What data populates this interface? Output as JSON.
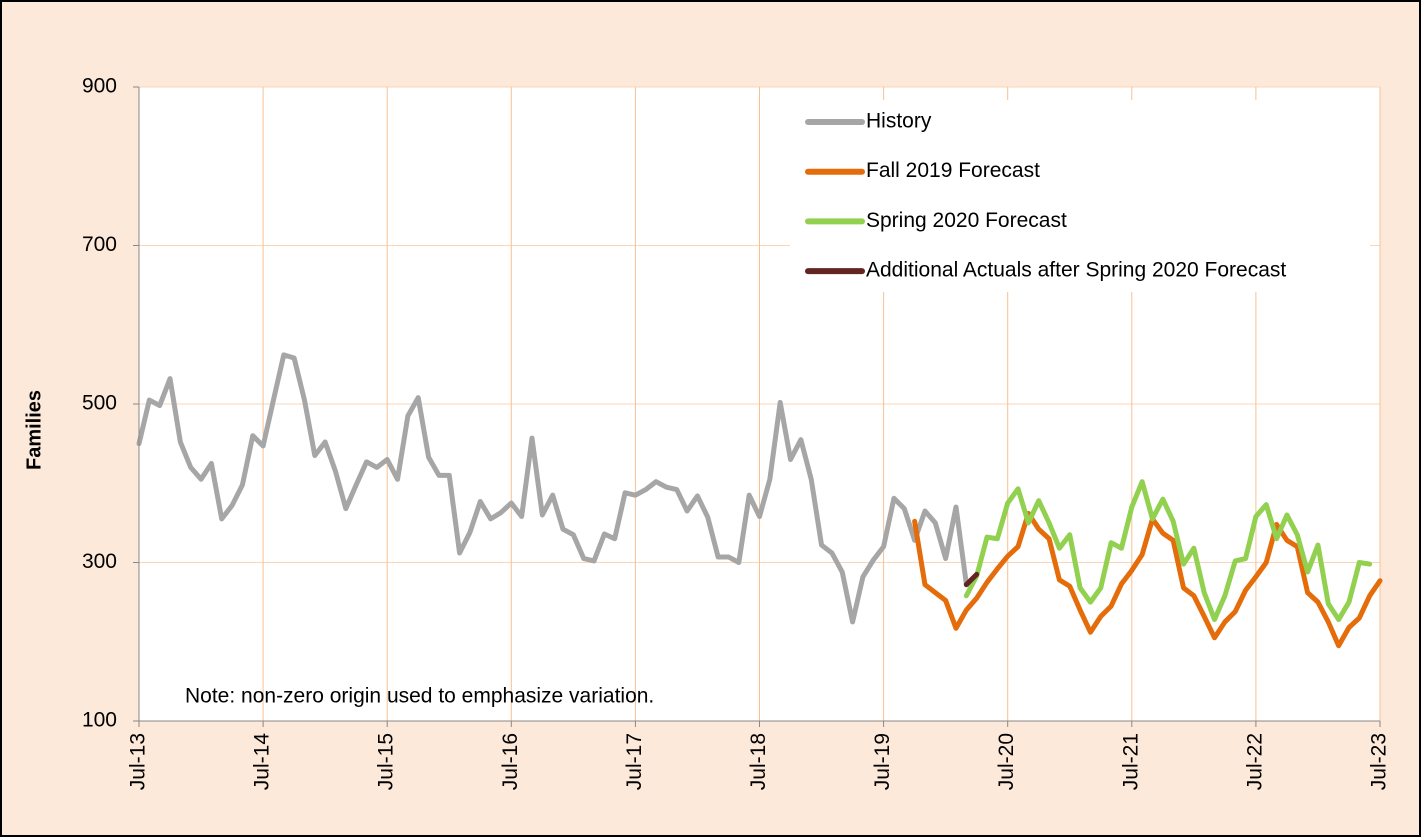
{
  "chart_data": {
    "type": "line",
    "y_label": "Families",
    "annotation": "Note: non-zero origin used to emphasize variation.",
    "categories": [
      "Jul-13",
      null,
      null,
      null,
      null,
      null,
      null,
      null,
      null,
      null,
      null,
      null,
      "Jul-14",
      null,
      null,
      null,
      null,
      null,
      null,
      null,
      null,
      null,
      null,
      null,
      "Jul-15",
      null,
      null,
      null,
      null,
      null,
      null,
      null,
      null,
      null,
      null,
      null,
      "Jul-16",
      null,
      null,
      null,
      null,
      null,
      null,
      null,
      null,
      null,
      null,
      null,
      "Jul-17",
      null,
      null,
      null,
      null,
      null,
      null,
      null,
      null,
      null,
      null,
      null,
      "Jul-18",
      null,
      null,
      null,
      null,
      null,
      null,
      null,
      null,
      null,
      null,
      null,
      "Jul-19",
      null,
      null,
      null,
      null,
      null,
      null,
      null,
      null,
      null,
      null,
      null,
      "Jul-20",
      null,
      null,
      null,
      null,
      null,
      null,
      null,
      null,
      null,
      null,
      null,
      "Jul-21",
      null,
      null,
      null,
      null,
      null,
      null,
      null,
      null,
      null,
      null,
      null,
      "Jul-22",
      null,
      null,
      null,
      null,
      null,
      null,
      null,
      null,
      null,
      null,
      null,
      "Jul-23"
    ],
    "series": [
      {
        "name": "History",
        "color": "#a6a6a6",
        "values": [
          450,
          505,
          498,
          532,
          452,
          420,
          405,
          425,
          355,
          372,
          398,
          460,
          447,
          505,
          562,
          558,
          505,
          435,
          452,
          415,
          368,
          398,
          427,
          420,
          430,
          405,
          485,
          508,
          433,
          410,
          410,
          312,
          338,
          377,
          355,
          363,
          375,
          358,
          457,
          360,
          385,
          342,
          335,
          305,
          302,
          336,
          330,
          388,
          385,
          392,
          402,
          395,
          392,
          365,
          384,
          357,
          307,
          307,
          300,
          385,
          358,
          405,
          502,
          430,
          455,
          405,
          322,
          312,
          288,
          225,
          282,
          303,
          320,
          381,
          368,
          328,
          365,
          350,
          305,
          370,
          273,
          null,
          null,
          null,
          null,
          null,
          null,
          null,
          null,
          null,
          null,
          null,
          null,
          null,
          null,
          null,
          null,
          null,
          null,
          null,
          null,
          null,
          null,
          null,
          null,
          null,
          null,
          null,
          null,
          null,
          null,
          null,
          null,
          null,
          null,
          null,
          null,
          null,
          null,
          null,
          null
        ]
      },
      {
        "name": "Fall 2019 Forecast",
        "color": "#e46c0a",
        "values": [
          null,
          null,
          null,
          null,
          null,
          null,
          null,
          null,
          null,
          null,
          null,
          null,
          null,
          null,
          null,
          null,
          null,
          null,
          null,
          null,
          null,
          null,
          null,
          null,
          null,
          null,
          null,
          null,
          null,
          null,
          null,
          null,
          null,
          null,
          null,
          null,
          null,
          null,
          null,
          null,
          null,
          null,
          null,
          null,
          null,
          null,
          null,
          null,
          null,
          null,
          null,
          null,
          null,
          null,
          null,
          null,
          null,
          null,
          null,
          null,
          null,
          null,
          null,
          null,
          null,
          null,
          null,
          null,
          null,
          null,
          null,
          null,
          null,
          null,
          null,
          352,
          272,
          262,
          252,
          217,
          240,
          255,
          275,
          292,
          308,
          320,
          362,
          342,
          330,
          278,
          270,
          240,
          212,
          232,
          245,
          273,
          290,
          310,
          355,
          337,
          328,
          268,
          258,
          232,
          205,
          225,
          238,
          265,
          282,
          300,
          348,
          328,
          320,
          262,
          250,
          225,
          195,
          218,
          230,
          258,
          277
        ]
      },
      {
        "name": "Spring 2020 Forecast",
        "color": "#92d050",
        "values": [
          null,
          null,
          null,
          null,
          null,
          null,
          null,
          null,
          null,
          null,
          null,
          null,
          null,
          null,
          null,
          null,
          null,
          null,
          null,
          null,
          null,
          null,
          null,
          null,
          null,
          null,
          null,
          null,
          null,
          null,
          null,
          null,
          null,
          null,
          null,
          null,
          null,
          null,
          null,
          null,
          null,
          null,
          null,
          null,
          null,
          null,
          null,
          null,
          null,
          null,
          null,
          null,
          null,
          null,
          null,
          null,
          null,
          null,
          null,
          null,
          null,
          null,
          null,
          null,
          null,
          null,
          null,
          null,
          null,
          null,
          null,
          null,
          null,
          null,
          null,
          null,
          null,
          null,
          null,
          null,
          258,
          283,
          332,
          330,
          375,
          393,
          350,
          378,
          350,
          318,
          335,
          268,
          250,
          268,
          325,
          318,
          370,
          402,
          355,
          380,
          352,
          298,
          318,
          262,
          228,
          258,
          302,
          305,
          358,
          373,
          330,
          360,
          335,
          288,
          322,
          248,
          228,
          250,
          300,
          298,
          null
        ]
      },
      {
        "name": "Additional Actuals after Spring 2020 Forecast",
        "color": "#632523",
        "values": [
          null,
          null,
          null,
          null,
          null,
          null,
          null,
          null,
          null,
          null,
          null,
          null,
          null,
          null,
          null,
          null,
          null,
          null,
          null,
          null,
          null,
          null,
          null,
          null,
          null,
          null,
          null,
          null,
          null,
          null,
          null,
          null,
          null,
          null,
          null,
          null,
          null,
          null,
          null,
          null,
          null,
          null,
          null,
          null,
          null,
          null,
          null,
          null,
          null,
          null,
          null,
          null,
          null,
          null,
          null,
          null,
          null,
          null,
          null,
          null,
          null,
          null,
          null,
          null,
          null,
          null,
          null,
          null,
          null,
          null,
          null,
          null,
          null,
          null,
          null,
          null,
          null,
          null,
          null,
          null,
          272,
          285,
          null,
          null,
          null,
          null,
          null,
          null,
          null,
          null,
          null,
          null,
          null,
          null,
          null,
          null,
          null,
          null,
          null,
          null,
          null,
          null,
          null,
          null,
          null,
          null,
          null,
          null,
          null,
          null,
          null,
          null,
          null,
          null,
          null,
          null,
          null,
          null,
          null,
          null,
          null
        ]
      }
    ],
    "ylim": [
      100,
      900
    ],
    "yticks": [
      100,
      300,
      500,
      700,
      900
    ],
    "grid": true
  }
}
